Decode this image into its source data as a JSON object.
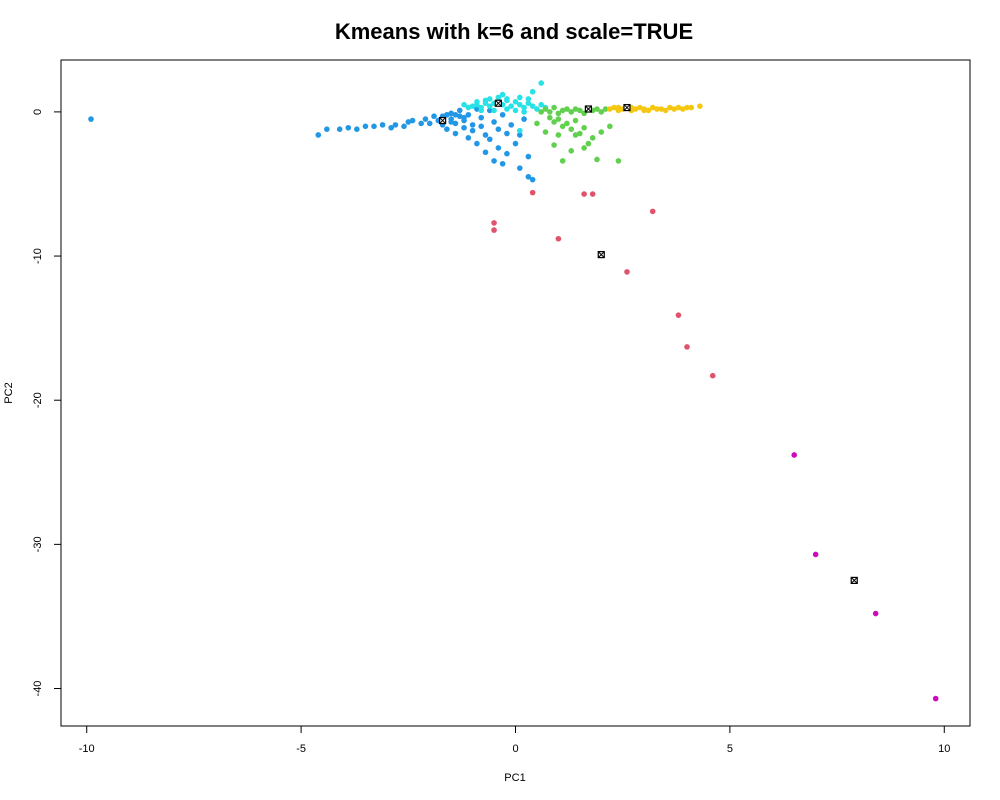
{
  "chart_data": {
    "type": "scatter",
    "title": "Kmeans with k=6 and scale=TRUE",
    "xlabel": "PC1",
    "ylabel": "PC2",
    "xlim": [
      -10.6,
      10.6
    ],
    "ylim": [
      -42.6,
      3.6
    ],
    "x_ticks": [
      -10,
      -5,
      0,
      5,
      10
    ],
    "x_tick_labels": [
      "-10",
      "-5",
      "0",
      "5",
      "10"
    ],
    "y_ticks": [
      0,
      -10,
      -20,
      -30,
      -40
    ],
    "y_tick_labels": [
      "0",
      "-10",
      "-20",
      "-30",
      "-40"
    ],
    "grid": false,
    "legend": "none",
    "series": [
      {
        "color": "#2297E6",
        "points": [
          [
            -9.9,
            -0.5
          ],
          [
            -4.6,
            -1.6
          ],
          [
            -4.4,
            -1.2
          ],
          [
            -4.1,
            -1.2
          ],
          [
            -3.9,
            -1.1
          ],
          [
            -3.7,
            -1.2
          ],
          [
            -3.5,
            -1.0
          ],
          [
            -3.3,
            -1.0
          ],
          [
            -3.1,
            -0.9
          ],
          [
            -2.9,
            -1.1
          ],
          [
            -2.8,
            -0.9
          ],
          [
            -2.6,
            -1.0
          ],
          [
            -2.5,
            -0.7
          ],
          [
            -2.4,
            -0.6
          ],
          [
            -2.2,
            -0.8
          ],
          [
            -2.1,
            -0.5
          ],
          [
            -2.0,
            -0.8
          ],
          [
            -1.9,
            -0.3
          ],
          [
            -1.8,
            -0.6
          ],
          [
            -1.7,
            -0.9
          ],
          [
            -1.6,
            -0.2
          ],
          [
            -1.6,
            -1.2
          ],
          [
            -1.5,
            -0.5
          ],
          [
            -1.5,
            -0.1
          ],
          [
            -1.4,
            -0.8
          ],
          [
            -1.4,
            -1.5
          ],
          [
            -1.3,
            -0.3
          ],
          [
            -1.3,
            0.1
          ],
          [
            -1.2,
            -0.6
          ],
          [
            -1.2,
            -1.1
          ],
          [
            -1.1,
            -1.8
          ],
          [
            -1.1,
            -0.2
          ],
          [
            -1.0,
            -0.9
          ],
          [
            -1.0,
            -1.3
          ],
          [
            -0.9,
            0.2
          ],
          [
            -0.9,
            -2.2
          ],
          [
            -0.8,
            -0.4
          ],
          [
            -0.8,
            -1.0
          ],
          [
            -0.7,
            -1.6
          ],
          [
            -0.7,
            -2.8
          ],
          [
            -0.6,
            0.1
          ],
          [
            -0.6,
            -1.9
          ],
          [
            -0.5,
            -0.7
          ],
          [
            -0.5,
            -3.4
          ],
          [
            -0.4,
            -1.2
          ],
          [
            -0.4,
            -2.5
          ],
          [
            -0.3,
            -3.6
          ],
          [
            -0.3,
            -0.2
          ],
          [
            -0.2,
            -1.5
          ],
          [
            -0.2,
            -2.9
          ],
          [
            -0.1,
            -0.9
          ],
          [
            0.0,
            -2.2
          ],
          [
            0.1,
            -3.9
          ],
          [
            0.1,
            -1.6
          ],
          [
            0.2,
            -0.5
          ],
          [
            0.3,
            -3.1
          ],
          [
            0.3,
            -4.5
          ],
          [
            0.4,
            -4.7
          ],
          [
            -1.8,
            -0.6
          ],
          [
            -1.5,
            -0.7
          ],
          [
            -1.2,
            -0.4
          ],
          [
            -1.7,
            -0.3
          ],
          [
            -1.4,
            -0.2
          ]
        ]
      },
      {
        "color": "#28E2E5",
        "points": [
          [
            -1.1,
            0.3
          ],
          [
            -1.0,
            0.4
          ],
          [
            -0.9,
            0.5
          ],
          [
            -0.8,
            0.3
          ],
          [
            -0.7,
            0.6
          ],
          [
            -0.6,
            0.4
          ],
          [
            -0.5,
            0.6
          ],
          [
            -0.4,
            0.7
          ],
          [
            -0.3,
            0.5
          ],
          [
            -0.2,
            0.8
          ],
          [
            -0.1,
            0.4
          ],
          [
            0.0,
            0.7
          ],
          [
            0.1,
            0.5
          ],
          [
            0.2,
            0.3
          ],
          [
            0.3,
            0.6
          ],
          [
            0.4,
            0.4
          ],
          [
            0.5,
            0.2
          ],
          [
            0.6,
            0.5
          ],
          [
            0.7,
            0.3
          ],
          [
            -0.6,
            0.9
          ],
          [
            -0.4,
            1.0
          ],
          [
            -0.3,
            1.2
          ],
          [
            -0.2,
            0.9
          ],
          [
            0.1,
            1.0
          ],
          [
            0.4,
            1.4
          ],
          [
            0.6,
            2.0
          ],
          [
            -0.8,
            0.1
          ],
          [
            -0.5,
            0.1
          ],
          [
            -0.2,
            0.2
          ],
          [
            0.0,
            0.1
          ],
          [
            0.2,
            0.0
          ],
          [
            0.1,
            -1.3
          ],
          [
            -0.9,
            0.7
          ],
          [
            -0.7,
            0.8
          ],
          [
            0.3,
            0.9
          ],
          [
            -1.2,
            0.5
          ]
        ]
      },
      {
        "color": "#61D04F",
        "points": [
          [
            0.7,
            0.2
          ],
          [
            0.8,
            0.0
          ],
          [
            0.9,
            0.3
          ],
          [
            1.0,
            -0.1
          ],
          [
            1.1,
            0.1
          ],
          [
            1.2,
            0.2
          ],
          [
            1.3,
            0.0
          ],
          [
            1.4,
            0.2
          ],
          [
            1.5,
            0.1
          ],
          [
            1.6,
            -0.1
          ],
          [
            1.7,
            0.2
          ],
          [
            1.8,
            0.1
          ],
          [
            1.9,
            0.2
          ],
          [
            2.0,
            0.0
          ],
          [
            2.1,
            0.2
          ],
          [
            0.8,
            -0.4
          ],
          [
            0.9,
            -0.7
          ],
          [
            1.0,
            -0.5
          ],
          [
            1.1,
            -1.0
          ],
          [
            1.2,
            -0.8
          ],
          [
            1.3,
            -1.2
          ],
          [
            1.4,
            -0.6
          ],
          [
            1.5,
            -1.5
          ],
          [
            1.6,
            -1.1
          ],
          [
            1.7,
            -2.2
          ],
          [
            1.8,
            -1.8
          ],
          [
            1.9,
            -3.3
          ],
          [
            2.0,
            -1.4
          ],
          [
            2.2,
            -1.0
          ],
          [
            2.4,
            -3.4
          ],
          [
            0.7,
            -1.4
          ],
          [
            0.9,
            -2.3
          ],
          [
            1.1,
            -3.4
          ],
          [
            1.3,
            -2.7
          ],
          [
            0.5,
            -0.8
          ],
          [
            0.6,
            0.0
          ],
          [
            1.6,
            -2.5
          ],
          [
            1.4,
            -1.6
          ],
          [
            1.0,
            -1.6
          ]
        ]
      },
      {
        "color": "#F5C710",
        "points": [
          [
            2.2,
            0.2
          ],
          [
            2.3,
            0.3
          ],
          [
            2.4,
            0.1
          ],
          [
            2.5,
            0.2
          ],
          [
            2.6,
            0.3
          ],
          [
            2.7,
            0.1
          ],
          [
            2.8,
            0.2
          ],
          [
            2.9,
            0.3
          ],
          [
            3.0,
            0.2
          ],
          [
            3.1,
            0.1
          ],
          [
            3.2,
            0.3
          ],
          [
            3.3,
            0.2
          ],
          [
            3.4,
            0.2
          ],
          [
            3.5,
            0.1
          ],
          [
            3.6,
            0.3
          ],
          [
            3.7,
            0.2
          ],
          [
            3.8,
            0.3
          ],
          [
            3.9,
            0.2
          ],
          [
            4.0,
            0.3
          ],
          [
            4.1,
            0.3
          ],
          [
            4.3,
            0.4
          ],
          [
            2.4,
            0.3
          ],
          [
            2.7,
            0.3
          ],
          [
            3.0,
            0.1
          ]
        ]
      },
      {
        "color": "#DF536B",
        "points": [
          [
            0.4,
            -5.6
          ],
          [
            1.6,
            -5.7
          ],
          [
            1.8,
            -5.7
          ],
          [
            3.2,
            -6.9
          ],
          [
            -0.5,
            -7.7
          ],
          [
            -0.5,
            -8.2
          ],
          [
            1.0,
            -8.8
          ],
          [
            2.6,
            -11.1
          ],
          [
            3.8,
            -14.1
          ],
          [
            4.0,
            -16.3
          ],
          [
            4.6,
            -18.3
          ]
        ]
      },
      {
        "color": "#CD0BBC",
        "points": [
          [
            6.5,
            -23.8
          ],
          [
            7.0,
            -30.7
          ],
          [
            8.4,
            -34.8
          ],
          [
            9.8,
            -40.7
          ]
        ]
      }
    ],
    "centers": [
      [
        -1.7,
        -0.6
      ],
      [
        -0.4,
        0.6
      ],
      [
        1.7,
        0.2
      ],
      [
        2.6,
        0.3
      ],
      [
        2.0,
        -9.9
      ],
      [
        7.9,
        -32.5
      ]
    ]
  }
}
